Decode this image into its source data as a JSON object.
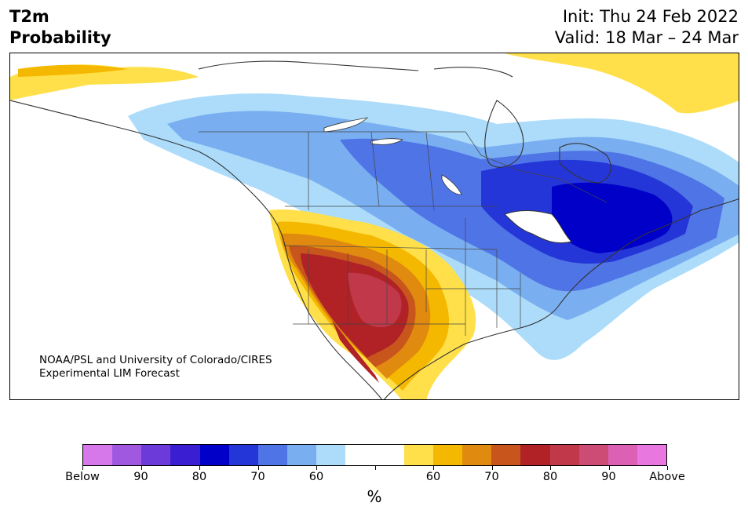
{
  "header": {
    "title_line1": "T2m",
    "title_line2": "Probability",
    "init": "Init: Thu 24 Feb 2022",
    "valid": "Valid: 18 Mar – 24 Mar"
  },
  "map": {
    "credit_line1": "NOAA/PSL and University of Colorado/CIRES",
    "credit_line2": "Experimental LIM Forecast"
  },
  "colorbar": {
    "colors": [
      "#d677ea",
      "#a058e0",
      "#6b3ad8",
      "#3a1ed2",
      "#0000c8",
      "#2536d8",
      "#4f74e6",
      "#79aef0",
      "#acdcfa",
      "#ffffff",
      "#ffffff",
      "#ffe04a",
      "#f5b800",
      "#e08a10",
      "#c8561c",
      "#b02226",
      "#c0384a",
      "#cc4c76",
      "#dc60b4",
      "#e878e0"
    ],
    "tick_labels": [
      "Below",
      "90",
      "80",
      "70",
      "60",
      "",
      "60",
      "70",
      "80",
      "90",
      "Above"
    ],
    "unit": "%"
  }
}
